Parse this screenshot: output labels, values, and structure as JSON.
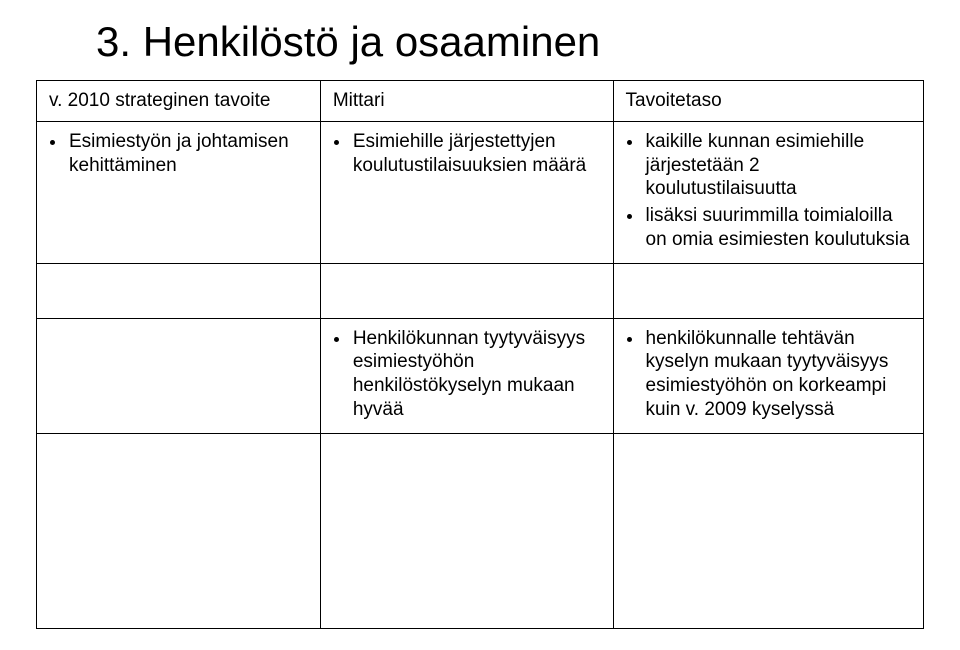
{
  "title": "3. Henkilöstö ja osaaminen",
  "columns": {
    "a": "v. 2010 strateginen tavoite",
    "b": "Mittari",
    "c": "Tavoitetaso"
  },
  "row1": {
    "a": [
      "Esimiestyön ja johtamisen kehittäminen"
    ],
    "b": [
      "Esimiehille järjestettyjen koulutustilaisuuksien määrä"
    ],
    "c": [
      "kaikille kunnan esimiehille järjestetään 2 koulutustilaisuutta",
      "lisäksi suurimmilla toimialoilla on omia esimiesten koulutuksia"
    ]
  },
  "row2": {
    "b": [
      "Henkilökunnan tyytyväisyys esimiestyöhön henkilöstökyselyn mukaan hyvää"
    ],
    "c": [
      "henkilökunnalle tehtävän kyselyn mukaan tyytyväisyys esimiestyöhön on korkeampi kuin v. 2009 kyselyssä"
    ]
  }
}
